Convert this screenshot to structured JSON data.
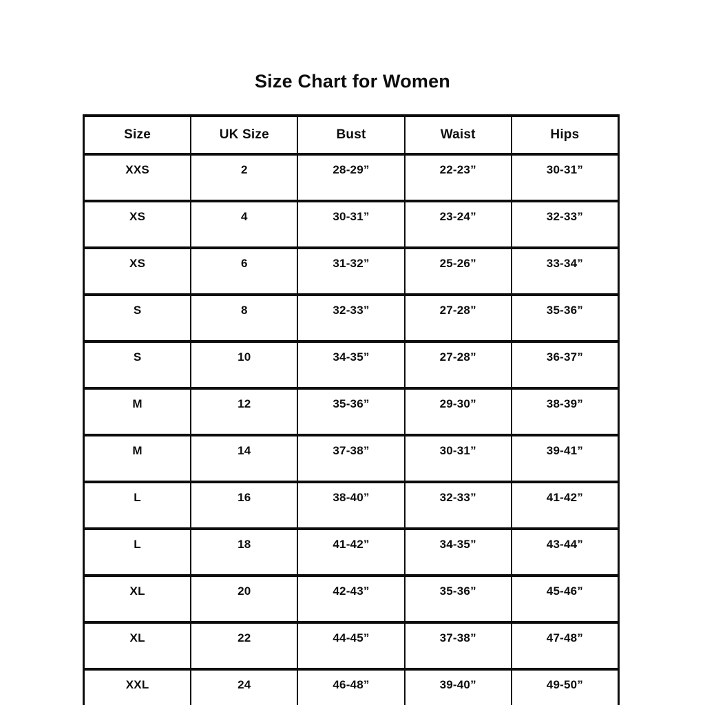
{
  "page": {
    "title": "Size Chart for Women"
  },
  "chart_data": {
    "type": "table",
    "title": "Size Chart for Women",
    "headers": [
      "Size",
      "UK Size",
      "Bust",
      "Waist",
      "Hips"
    ],
    "rows": [
      [
        "XXS",
        "2",
        "28-29”",
        "22-23”",
        "30-31”"
      ],
      [
        "XS",
        "4",
        "30-31”",
        "23-24”",
        "32-33”"
      ],
      [
        "XS",
        "6",
        "31-32”",
        "25-26”",
        "33-34”"
      ],
      [
        "S",
        "8",
        "32-33”",
        "27-28”",
        "35-36”"
      ],
      [
        "S",
        "10",
        "34-35”",
        "27-28”",
        "36-37”"
      ],
      [
        "M",
        "12",
        "35-36”",
        "29-30”",
        "38-39”"
      ],
      [
        "M",
        "14",
        "37-38”",
        "30-31”",
        "39-41”"
      ],
      [
        "L",
        "16",
        "38-40”",
        "32-33”",
        "41-42”"
      ],
      [
        "L",
        "18",
        "41-42”",
        "34-35”",
        "43-44”"
      ],
      [
        "XL",
        "20",
        "42-43”",
        "35-36”",
        "45-46”"
      ],
      [
        "XL",
        "22",
        "44-45”",
        "37-38”",
        "47-48”"
      ],
      [
        "XXL",
        "24",
        "46-48”",
        "39-40”",
        "49-50”"
      ]
    ],
    "layout": {
      "grid": true,
      "header_row": true,
      "text_color": "#0d0d0d",
      "background_color": "#ffffff",
      "border_color": "#0d0d0d"
    }
  }
}
